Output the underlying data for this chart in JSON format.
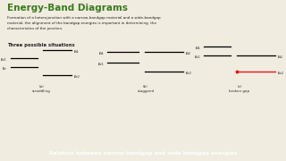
{
  "title": "Energy-Band Diagrams",
  "title_color": "#3a7a1e",
  "bg_color": "#f0ece0",
  "body_text": "Formation of a heterojunction with a narrow-bandgap material and a wide-bandgap\nmaterial, the alignment of the bandgap energies is important in determining  the\ncharacteristics of the junction.",
  "sub_title": "Three possible situations",
  "footer_text": "Relation between narrow bandgap and wide bandgap energies",
  "footer_bg": "#5a9e2f",
  "footer_text_color": "#ffffff",
  "text_color": "#333333"
}
